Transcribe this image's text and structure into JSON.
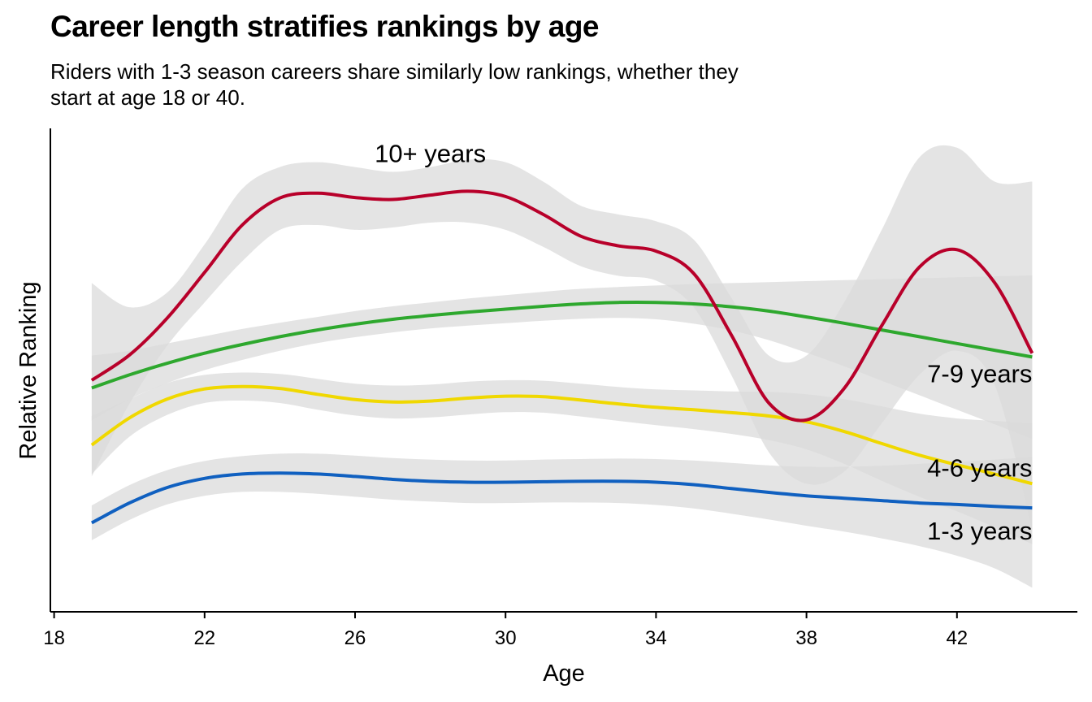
{
  "chart_data": {
    "type": "line",
    "title": "Career length stratifies rankings by age",
    "subtitle": "Riders with 1-3 season careers share similarly low rankings, whether they start at age 18 or 40.",
    "xlabel": "Age",
    "ylabel": "Relative Ranking",
    "xlim": [
      17.9,
      45.2
    ],
    "ylim": [
      0,
      1
    ],
    "xticks": [
      18,
      22,
      26,
      30,
      34,
      38,
      42
    ],
    "grid": false,
    "legend": "none",
    "confidence_band": true,
    "band_color": "#d9d9d9",
    "series": [
      {
        "name": "1-3 years",
        "color": "#1060c0",
        "label_x": 44,
        "label_y": 0.15,
        "x": [
          19,
          20,
          21,
          22,
          23,
          24,
          25,
          26,
          27,
          28,
          29,
          30,
          31,
          32,
          33,
          34,
          35,
          36,
          37,
          38,
          39,
          40,
          41,
          42,
          43,
          44
        ],
        "y": [
          0.184,
          0.225,
          0.257,
          0.276,
          0.285,
          0.287,
          0.285,
          0.28,
          0.274,
          0.27,
          0.268,
          0.268,
          0.269,
          0.27,
          0.27,
          0.268,
          0.263,
          0.255,
          0.247,
          0.24,
          0.235,
          0.23,
          0.225,
          0.222,
          0.218,
          0.215
        ],
        "upper": [
          0.22,
          0.262,
          0.293,
          0.312,
          0.322,
          0.327,
          0.327,
          0.323,
          0.318,
          0.315,
          0.313,
          0.313,
          0.315,
          0.316,
          0.317,
          0.316,
          0.313,
          0.308,
          0.303,
          0.3,
          0.3,
          0.302,
          0.306,
          0.31,
          0.315,
          0.32
        ],
        "lower": [
          0.148,
          0.19,
          0.222,
          0.24,
          0.248,
          0.248,
          0.244,
          0.238,
          0.232,
          0.228,
          0.225,
          0.225,
          0.226,
          0.226,
          0.225,
          0.221,
          0.214,
          0.203,
          0.191,
          0.178,
          0.166,
          0.152,
          0.136,
          0.116,
          0.09,
          0.05
        ]
      },
      {
        "name": "4-6 years",
        "color": "#f0d800",
        "label_x": 44,
        "label_y": 0.28,
        "x": [
          19,
          20,
          21,
          22,
          23,
          24,
          25,
          26,
          27,
          28,
          29,
          30,
          31,
          32,
          33,
          34,
          35,
          36,
          37,
          38,
          39,
          40,
          41,
          42,
          43,
          44
        ],
        "y": [
          0.345,
          0.401,
          0.44,
          0.461,
          0.466,
          0.462,
          0.45,
          0.439,
          0.434,
          0.436,
          0.442,
          0.446,
          0.445,
          0.438,
          0.43,
          0.423,
          0.418,
          0.412,
          0.405,
          0.393,
          0.373,
          0.348,
          0.324,
          0.304,
          0.285,
          0.265
        ],
        "upper": [
          0.405,
          0.44,
          0.473,
          0.49,
          0.495,
          0.492,
          0.482,
          0.472,
          0.468,
          0.47,
          0.476,
          0.479,
          0.478,
          0.472,
          0.465,
          0.46,
          0.458,
          0.456,
          0.455,
          0.45,
          0.44,
          0.425,
          0.41,
          0.4,
          0.395,
          0.39
        ],
        "lower": [
          0.285,
          0.362,
          0.407,
          0.432,
          0.437,
          0.432,
          0.418,
          0.406,
          0.4,
          0.402,
          0.408,
          0.413,
          0.412,
          0.404,
          0.395,
          0.386,
          0.378,
          0.368,
          0.355,
          0.336,
          0.306,
          0.271,
          0.238,
          0.208,
          0.175,
          0.14
        ]
      },
      {
        "name": "7-9 years",
        "color": "#2ea82e",
        "label_x": 44,
        "label_y": 0.475,
        "x": [
          19,
          20,
          21,
          22,
          23,
          24,
          25,
          26,
          27,
          28,
          29,
          30,
          31,
          32,
          33,
          34,
          35,
          36,
          37,
          38,
          39,
          40,
          41,
          42,
          43,
          44
        ],
        "y": [
          0.463,
          0.49,
          0.514,
          0.535,
          0.553,
          0.569,
          0.583,
          0.595,
          0.605,
          0.613,
          0.62,
          0.626,
          0.632,
          0.637,
          0.64,
          0.64,
          0.637,
          0.631,
          0.622,
          0.61,
          0.597,
          0.583,
          0.569,
          0.555,
          0.541,
          0.527
        ],
        "upper": [
          0.53,
          0.54,
          0.555,
          0.57,
          0.585,
          0.598,
          0.61,
          0.622,
          0.632,
          0.64,
          0.648,
          0.655,
          0.662,
          0.668,
          0.672,
          0.675,
          0.678,
          0.68,
          0.682,
          0.684,
          0.686,
          0.688,
          0.69,
          0.692,
          0.694,
          0.696
        ],
        "lower": [
          0.396,
          0.44,
          0.473,
          0.5,
          0.521,
          0.54,
          0.556,
          0.568,
          0.578,
          0.586,
          0.592,
          0.597,
          0.602,
          0.606,
          0.608,
          0.605,
          0.596,
          0.582,
          0.562,
          0.536,
          0.508,
          0.478,
          0.448,
          0.418,
          0.388,
          0.358
        ]
      },
      {
        "name": "10+ years",
        "color": "#b8002a",
        "label_x": 28,
        "label_y": 0.93,
        "x": [
          19,
          20,
          21,
          22,
          23,
          24,
          25,
          26,
          27,
          28,
          29,
          30,
          31,
          32,
          33,
          34,
          35,
          36,
          37,
          38,
          39,
          40,
          41,
          42,
          43,
          44
        ],
        "y": [
          0.479,
          0.531,
          0.607,
          0.702,
          0.8,
          0.856,
          0.866,
          0.857,
          0.853,
          0.862,
          0.87,
          0.859,
          0.822,
          0.777,
          0.757,
          0.746,
          0.7,
          0.573,
          0.432,
          0.397,
          0.462,
          0.592,
          0.713,
          0.749,
          0.681,
          0.535
        ],
        "upper": [
          0.68,
          0.63,
          0.66,
          0.76,
          0.875,
          0.92,
          0.93,
          0.92,
          0.91,
          0.92,
          0.935,
          0.93,
          0.89,
          0.84,
          0.822,
          0.808,
          0.77,
          0.65,
          0.53,
          0.53,
          0.64,
          0.79,
          0.94,
          0.96,
          0.89,
          0.89
        ],
        "lower": [
          0.28,
          0.43,
          0.55,
          0.64,
          0.725,
          0.79,
          0.8,
          0.79,
          0.795,
          0.805,
          0.805,
          0.79,
          0.755,
          0.715,
          0.695,
          0.685,
          0.63,
          0.49,
          0.33,
          0.265,
          0.29,
          0.39,
          0.49,
          0.54,
          0.47,
          0.17
        ]
      }
    ]
  }
}
